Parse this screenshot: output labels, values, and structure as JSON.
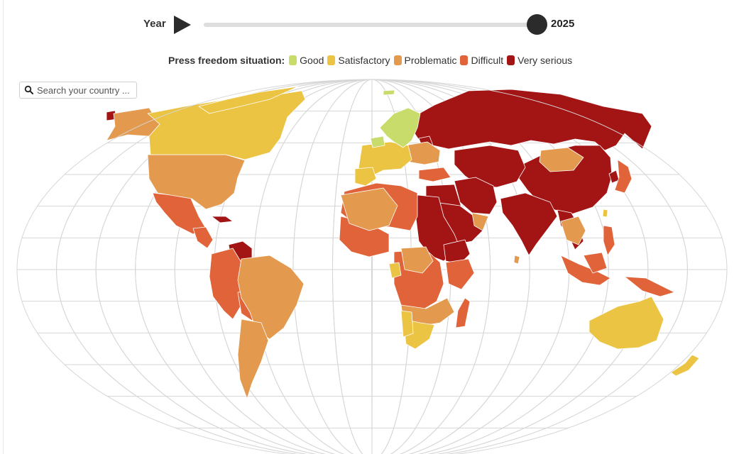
{
  "year_control": {
    "label": "Year",
    "value": "2025",
    "min_year": 2013,
    "max_year": 2025,
    "position_fraction": 1.0
  },
  "legend": {
    "title": "Press freedom situation:",
    "items": [
      {
        "label": "Good",
        "color": "#c8dc6b"
      },
      {
        "label": "Satisfactory",
        "color": "#ecc443"
      },
      {
        "label": "Problematic",
        "color": "#e39a4e"
      },
      {
        "label": "Difficult",
        "color": "#e06339"
      },
      {
        "label": "Very serious",
        "color": "#a31515"
      }
    ]
  },
  "search": {
    "placeholder": "Search your country ..."
  },
  "icons": {
    "play": "play-icon",
    "search": "search-icon"
  },
  "colors": {
    "graticule": "#d6d6d6",
    "ocean": "#ffffff",
    "slider_thumb": "#2b2b2b",
    "slider_track": "#dedede"
  }
}
